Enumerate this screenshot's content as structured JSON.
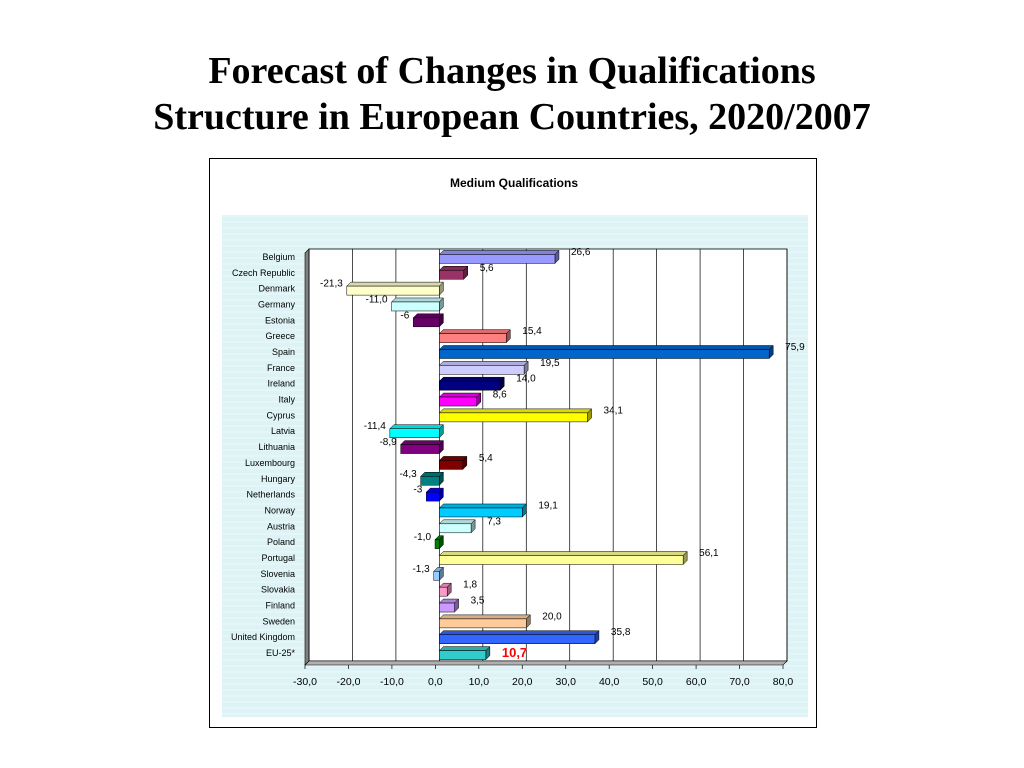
{
  "slide": {
    "title_line1": "Forecast of Changes in Qualifications",
    "title_line2": "Structure in European Countries, 2020/2007"
  },
  "chart_data": {
    "type": "bar",
    "orientation": "horizontal",
    "title": "Medium Qualifications",
    "categories": [
      "Belgium",
      "Czech Republic",
      "Denmark",
      "Germany",
      "Estonia",
      "Greece",
      "Spain",
      "France",
      "Ireland",
      "Italy",
      "Cyprus",
      "Latvia",
      "Lithuania",
      "Luxembourg",
      "Hungary",
      "Netherlands",
      "Norway",
      "Austria",
      "Poland",
      "Portugal",
      "Slovenia",
      "Slovakia",
      "Finland",
      "Sweden",
      "United Kingdom",
      "EU-25*"
    ],
    "values": [
      26.6,
      5.6,
      -21.3,
      -11.0,
      -6.0,
      15.4,
      75.9,
      19.5,
      14.0,
      8.6,
      34.1,
      -11.4,
      -8.9,
      5.4,
      -4.3,
      -3.0,
      19.1,
      7.3,
      -1.0,
      56.1,
      -1.3,
      1.8,
      3.5,
      20.0,
      35.8,
      10.7
    ],
    "value_labels": [
      "26,6",
      "5,6",
      "-21,3",
      "-11,0",
      "-6",
      "15,4",
      "75,9",
      "19,5",
      "14,0",
      "8,6",
      "34,1",
      "-11,4",
      "-8,9",
      "5,4",
      "-4,3",
      "-3",
      "19,1",
      "7,3",
      "-1,0",
      "56,1",
      "-1,3",
      "1,8",
      "3,5",
      "20,0",
      "35,8",
      "10,7"
    ],
    "bar_colors": [
      "#9999FF",
      "#993366",
      "#FFFFCC",
      "#CCFFFF",
      "#660066",
      "#FF8080",
      "#0066CC",
      "#CCCCFF",
      "#000080",
      "#FF00FF",
      "#FFFF00",
      "#00FFFF",
      "#800080",
      "#800000",
      "#008080",
      "#0000FF",
      "#00CCFF",
      "#CCFFFF",
      "#008000",
      "#FFFF99",
      "#99CCFF",
      "#FF99CC",
      "#CC99FF",
      "#FFCC99",
      "#3366FF",
      "#33CCCC"
    ],
    "highlight_label_color": "#FF0000",
    "highlight_index": 25,
    "xlim": [
      -30,
      80
    ],
    "xticks": [
      -30,
      -20,
      -10,
      0,
      10,
      20,
      30,
      40,
      50,
      60,
      70,
      80
    ],
    "xtick_labels": [
      "-30,0",
      "-20,0",
      "-10,0",
      "0,0",
      "10,0",
      "20,0",
      "30,0",
      "40,0",
      "50,0",
      "60,0",
      "70,0",
      "80,0"
    ],
    "grid": "vertical",
    "legend": "none",
    "plot_background": "#DDF3F5"
  }
}
